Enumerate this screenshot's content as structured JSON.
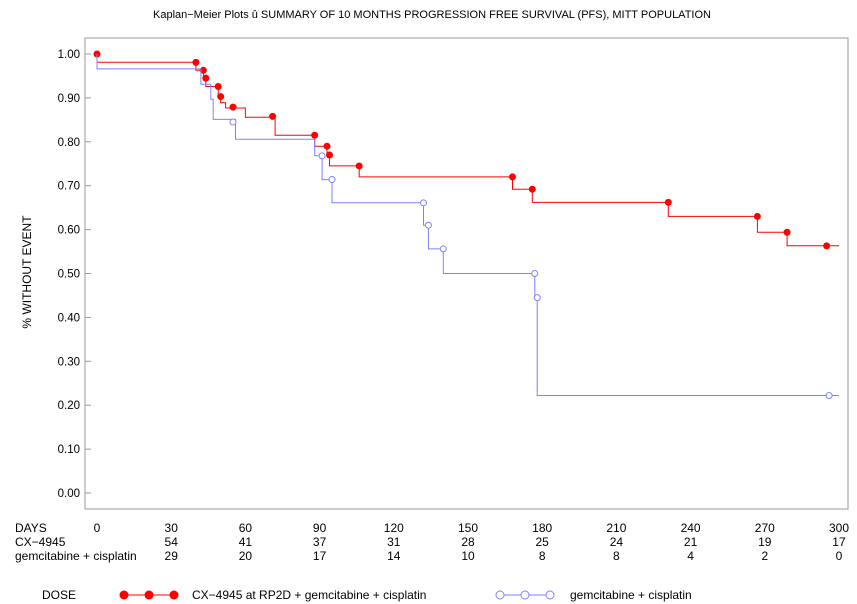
{
  "chart_data": {
    "type": "line",
    "title": "Kaplan−Meier Plots û SUMMARY OF 10 MONTHS PROGRESSION FREE SURVIVAL (PFS), MITT POPULATION",
    "ylabel": "% WITHOUT EVENT",
    "xlabel": "DAYS",
    "xlim": [
      0,
      300
    ],
    "ylim": [
      0,
      1
    ],
    "x_ticks": [
      "0",
      "30",
      "60",
      "90",
      "120",
      "150",
      "180",
      "210",
      "240",
      "270",
      "300"
    ],
    "y_ticks": [
      "0.00",
      "0.10",
      "0.20",
      "0.30",
      "0.40",
      "0.50",
      "0.60",
      "0.70",
      "0.80",
      "0.90",
      "1.00"
    ],
    "grid": false,
    "series": [
      {
        "name": "CX−4945 at RP2D + gemcitabine + cisplatin",
        "color": "#ff0000",
        "marker": "filled-circle",
        "steps": [
          [
            0,
            1.0
          ],
          [
            0,
            0.981
          ],
          [
            40,
            0.963
          ],
          [
            43,
            0.945
          ],
          [
            44,
            0.926
          ],
          [
            49,
            0.908
          ],
          [
            50,
            0.889
          ],
          [
            52,
            0.877
          ],
          [
            60,
            0.856
          ],
          [
            72,
            0.815
          ],
          [
            88,
            0.79
          ],
          [
            93,
            0.77
          ],
          [
            94,
            0.745
          ],
          [
            106,
            0.72
          ],
          [
            168,
            0.692
          ],
          [
            176,
            0.662
          ],
          [
            231,
            0.63
          ],
          [
            267,
            0.594
          ],
          [
            279,
            0.563
          ],
          [
            300,
            0.563
          ]
        ],
        "censored": [
          [
            0,
            1.0
          ],
          [
            40,
            0.981
          ],
          [
            43,
            0.963
          ],
          [
            44,
            0.945
          ],
          [
            49,
            0.926
          ],
          [
            50,
            0.903
          ],
          [
            55,
            0.879
          ],
          [
            71,
            0.858
          ],
          [
            88,
            0.815
          ],
          [
            93,
            0.79
          ],
          [
            94,
            0.77
          ],
          [
            106,
            0.745
          ],
          [
            168,
            0.72
          ],
          [
            176,
            0.692
          ],
          [
            231,
            0.662
          ],
          [
            267,
            0.63
          ],
          [
            279,
            0.594
          ],
          [
            295,
            0.563
          ]
        ]
      },
      {
        "name": "gemcitabine + cisplatin",
        "color": "#8080ff",
        "marker": "open-circle",
        "steps": [
          [
            0,
            1.0
          ],
          [
            0,
            0.966
          ],
          [
            42,
            0.931
          ],
          [
            46,
            0.897
          ],
          [
            47,
            0.851
          ],
          [
            56,
            0.806
          ],
          [
            88,
            0.768
          ],
          [
            91,
            0.714
          ],
          [
            95,
            0.661
          ],
          [
            132,
            0.61
          ],
          [
            134,
            0.556
          ],
          [
            140,
            0.5
          ],
          [
            177,
            0.445
          ],
          [
            178,
            0.222
          ],
          [
            300,
            0.222
          ]
        ],
        "censored": [
          [
            55,
            0.845
          ],
          [
            91,
            0.768
          ],
          [
            95,
            0.714
          ],
          [
            132,
            0.661
          ],
          [
            134,
            0.61
          ],
          [
            140,
            0.556
          ],
          [
            177,
            0.5
          ],
          [
            178,
            0.445
          ],
          [
            296,
            0.222
          ]
        ]
      }
    ],
    "risk_table": {
      "header": "DAYS",
      "rows": [
        {
          "label": "CX−4945",
          "values": [
            "54",
            "41",
            "37",
            "31",
            "28",
            "25",
            "24",
            "21",
            "19",
            "17"
          ]
        },
        {
          "label": "gemcitabine  +  cisplatin",
          "values": [
            "29",
            "20",
            "17",
            "14",
            "10",
            "8",
            "8",
            "4",
            "2",
            "0"
          ]
        }
      ],
      "days": [
        30,
        60,
        90,
        120,
        150,
        180,
        210,
        240,
        270,
        300
      ]
    },
    "legend": {
      "title": "DOSE",
      "position": "bottom",
      "entries": [
        "CX−4945 at RP2D + gemcitabine + cisplatin",
        "gemcitabine + cisplatin"
      ]
    }
  }
}
